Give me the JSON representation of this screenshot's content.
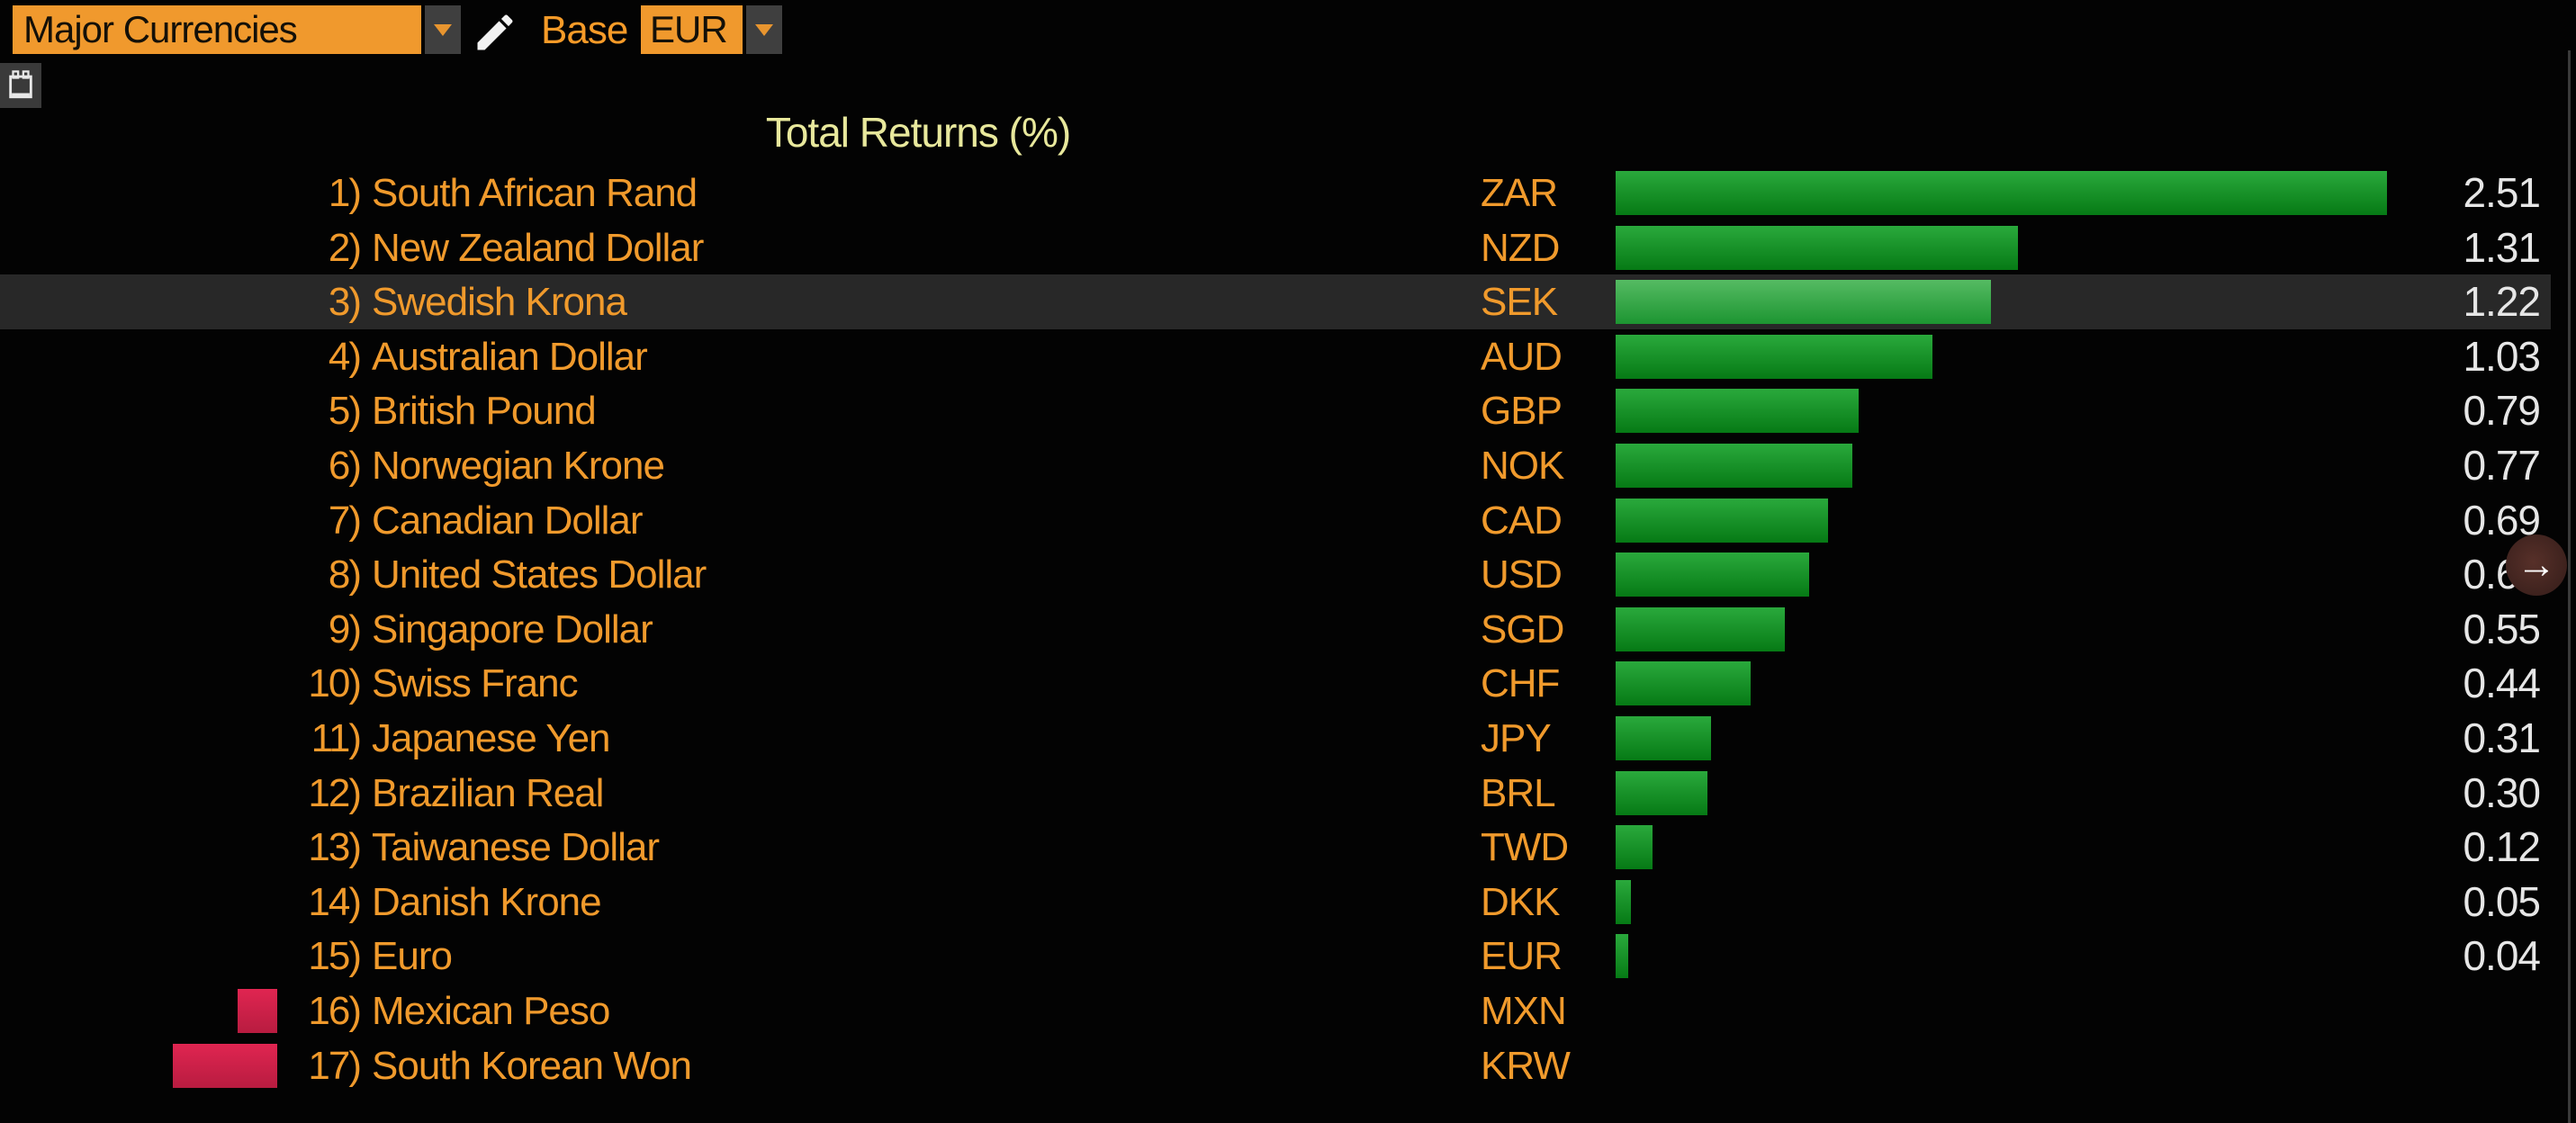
{
  "toolbar": {
    "currency_group_select": {
      "value": "Major Currencies"
    },
    "base_label": "Base",
    "base_select": {
      "value": "EUR"
    }
  },
  "nav": {
    "scroll_right_arrow": "→"
  },
  "colors": {
    "background": "#030303",
    "accent_orange": "#f0992d",
    "label_orange": "#f09a2c",
    "title_yellow": "#e8e89c",
    "value_white": "#e6e6e6",
    "positive_bar_green": "#0e8c1f",
    "highlighted_bar_green": "#2fa844",
    "negative_bar_red": "#d0204a",
    "highlight_row_bg": "#282828"
  },
  "chart_data": {
    "type": "bar",
    "orientation": "horizontal",
    "title": "Total Returns (%)",
    "base_currency": "EUR",
    "value_axis_range": [
      -0.4,
      2.6
    ],
    "grid": false,
    "legend": false,
    "highlighted_row_index": 2,
    "note": "MXN and KRW show red negative bars with no printed value; their values are estimated from bar length. USD printed value partially covered by scroll arrow button.",
    "rows": [
      {
        "rank": "1)",
        "name": "South African Rand",
        "code": "ZAR",
        "value": 2.51,
        "value_label": "2.51",
        "highlighted": false
      },
      {
        "rank": "2)",
        "name": "New Zealand Dollar",
        "code": "NZD",
        "value": 1.31,
        "value_label": "1.31",
        "highlighted": false
      },
      {
        "rank": "3)",
        "name": "Swedish Krona",
        "code": "SEK",
        "value": 1.22,
        "value_label": "1.22",
        "highlighted": true
      },
      {
        "rank": "4)",
        "name": "Australian Dollar",
        "code": "AUD",
        "value": 1.03,
        "value_label": "1.03",
        "highlighted": false
      },
      {
        "rank": "5)",
        "name": "British Pound",
        "code": "GBP",
        "value": 0.79,
        "value_label": "0.79",
        "highlighted": false
      },
      {
        "rank": "6)",
        "name": "Norwegian Krone",
        "code": "NOK",
        "value": 0.77,
        "value_label": "0.77",
        "highlighted": false
      },
      {
        "rank": "7)",
        "name": "Canadian Dollar",
        "code": "CAD",
        "value": 0.69,
        "value_label": "0.69",
        "highlighted": false
      },
      {
        "rank": "8)",
        "name": "United States Dollar",
        "code": "USD",
        "value": 0.63,
        "value_label": "0.63",
        "highlighted": false
      },
      {
        "rank": "9)",
        "name": "Singapore Dollar",
        "code": "SGD",
        "value": 0.55,
        "value_label": "0.55",
        "highlighted": false
      },
      {
        "rank": "10)",
        "name": "Swiss Franc",
        "code": "CHF",
        "value": 0.44,
        "value_label": "0.44",
        "highlighted": false
      },
      {
        "rank": "11)",
        "name": "Japanese Yen",
        "code": "JPY",
        "value": 0.31,
        "value_label": "0.31",
        "highlighted": false
      },
      {
        "rank": "12)",
        "name": "Brazilian Real",
        "code": "BRL",
        "value": 0.3,
        "value_label": "0.30",
        "highlighted": false
      },
      {
        "rank": "13)",
        "name": "Taiwanese Dollar",
        "code": "TWD",
        "value": 0.12,
        "value_label": "0.12",
        "highlighted": false
      },
      {
        "rank": "14)",
        "name": "Danish Krone",
        "code": "DKK",
        "value": 0.05,
        "value_label": "0.05",
        "highlighted": false
      },
      {
        "rank": "15)",
        "name": "Euro",
        "code": "EUR",
        "value": 0.04,
        "value_label": "0.04",
        "highlighted": false
      },
      {
        "rank": "16)",
        "name": "Mexican Peso",
        "code": "MXN",
        "value": -0.13,
        "value_label": "",
        "highlighted": false
      },
      {
        "rank": "17)",
        "name": "South Korean Won",
        "code": "KRW",
        "value": -0.34,
        "value_label": "",
        "highlighted": false
      }
    ]
  }
}
